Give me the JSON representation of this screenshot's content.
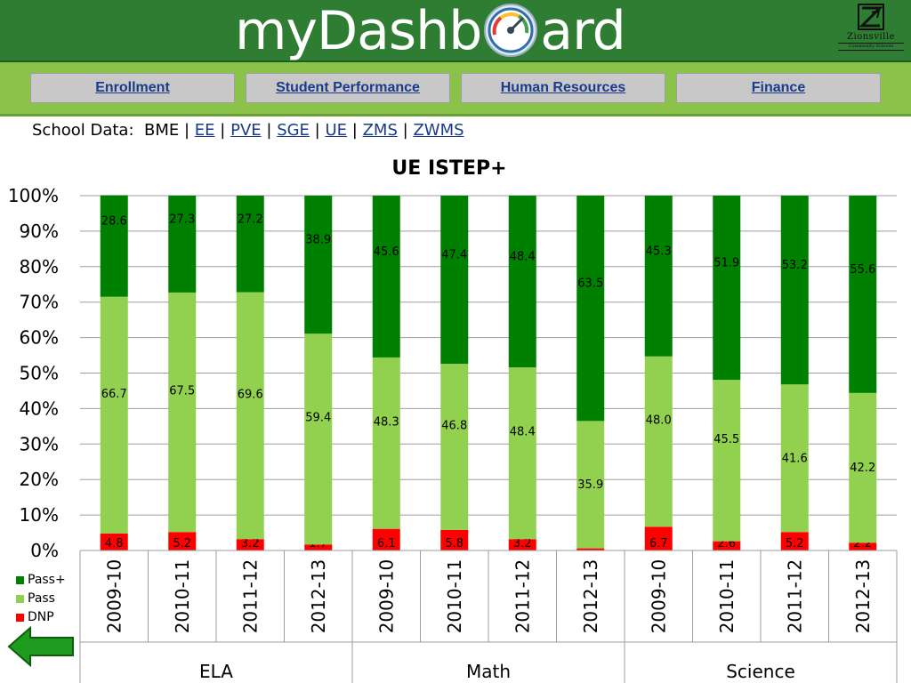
{
  "header": {
    "title_left": "myDashb",
    "title_right": "ard",
    "logo_name": "Zionsville",
    "logo_sub": "Community Schools"
  },
  "nav": {
    "items": [
      {
        "label": "Enrollment"
      },
      {
        "label": "Student Performance"
      },
      {
        "label": "Human Resources"
      },
      {
        "label": "Finance"
      }
    ]
  },
  "school_data": {
    "prefix": "School Data:",
    "current": "BME",
    "separator": "|",
    "links": [
      "EE",
      "PVE",
      "SGE",
      "UE",
      "ZMS",
      "ZWMS"
    ]
  },
  "chart_data": {
    "type": "bar",
    "stacked": true,
    "title": "UE ISTEP+",
    "ylim": [
      0,
      100
    ],
    "yticks": [
      "0%",
      "10%",
      "20%",
      "30%",
      "40%",
      "50%",
      "60%",
      "70%",
      "80%",
      "90%",
      "100%"
    ],
    "grid": true,
    "legend_position": "bottom-left",
    "groups": [
      "ELA",
      "Math",
      "Science"
    ],
    "categories": [
      "2009-10",
      "2010-11",
      "2011-12",
      "2012-13",
      "2009-10",
      "2010-11",
      "2011-12",
      "2012-13",
      "2009-10",
      "2010-11",
      "2011-12",
      "2012-13"
    ],
    "series": [
      {
        "name": "DNP",
        "color": "#ff0000",
        "values": [
          4.8,
          5.2,
          3.2,
          1.7,
          6.1,
          5.8,
          3.2,
          0.6,
          6.7,
          2.6,
          5.2,
          2.2
        ],
        "labels": [
          "4.8",
          "5.2",
          "3.2",
          "1.7",
          "6.1",
          "5.8",
          "3.2",
          "0.6",
          "6.7",
          "2.6",
          "5.2",
          "2.2"
        ]
      },
      {
        "name": "Pass",
        "color": "#92d050",
        "values": [
          66.7,
          67.5,
          69.6,
          59.4,
          48.3,
          46.8,
          48.4,
          35.9,
          48.0,
          45.5,
          41.6,
          42.2
        ],
        "labels": [
          "66.7",
          "67.5",
          "69.6",
          "59.4",
          "48.3",
          "46.8",
          "48.4",
          "35.9",
          "48.0",
          "45.5",
          "41.6",
          "42.2"
        ]
      },
      {
        "name": "Pass+",
        "color": "#008000",
        "values": [
          28.6,
          27.3,
          27.2,
          38.9,
          45.6,
          47.4,
          48.4,
          63.5,
          45.3,
          51.9,
          53.2,
          55.6
        ],
        "labels": [
          "28.6",
          "27.3",
          "27.2",
          "38.9",
          "45.6",
          "47.4",
          "48.4",
          "63.5",
          "45.3",
          "51.9",
          "53.2",
          "55.6"
        ]
      }
    ],
    "legend": [
      "Pass+",
      "Pass",
      "DNP"
    ]
  },
  "colors": {
    "banner": "#2e7d32",
    "navbar": "#8bc34a",
    "link": "#1a3a8a",
    "arrow": "#1e9a1e"
  },
  "icons": {
    "gauge": "speedometer-icon",
    "back": "back-arrow-icon"
  }
}
